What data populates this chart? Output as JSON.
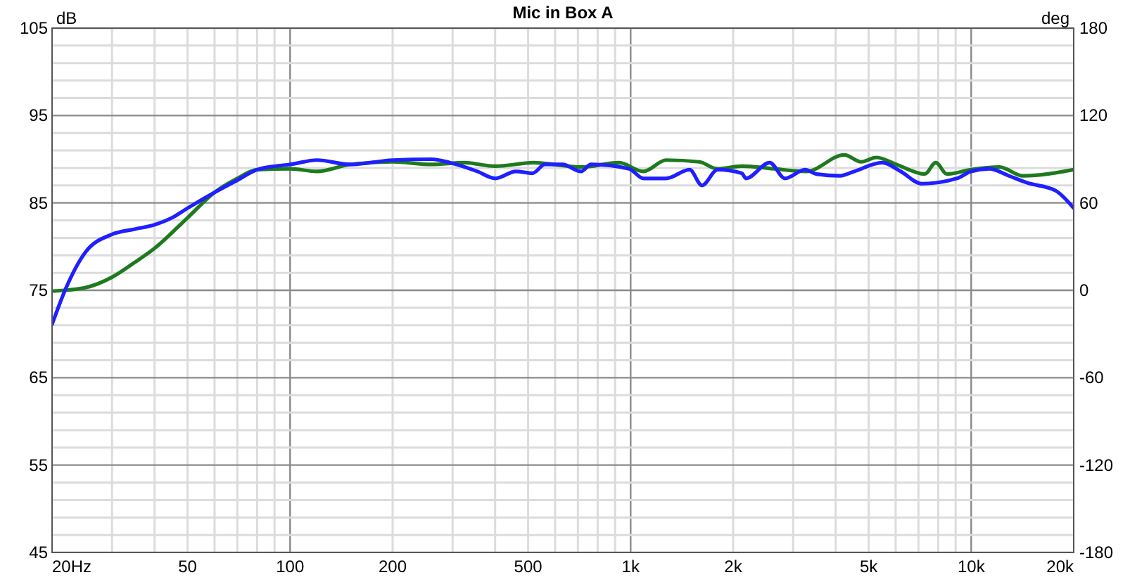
{
  "chart_data": {
    "type": "line",
    "title": "Mic in Box A",
    "ylabel": "dB",
    "y2label": "deg",
    "log": "x",
    "grid": true,
    "xlim": [
      20,
      20000
    ],
    "xticks": [
      {
        "value": 20,
        "label": "20Hz"
      },
      50,
      100,
      200,
      500,
      {
        "value": 1000,
        "label": "1k"
      },
      {
        "value": 2000,
        "label": "2k"
      },
      {
        "value": 5000,
        "label": "5k"
      },
      {
        "value": 10000,
        "label": "10k"
      },
      {
        "value": 20000,
        "label": "20k"
      }
    ],
    "ylim": [
      45,
      105
    ],
    "yticks": [
      45,
      55,
      65,
      75,
      85,
      95,
      105
    ],
    "y2lim": [
      -180,
      180
    ],
    "y2ticks": [
      -180,
      -120,
      -60,
      0,
      60,
      120,
      180
    ],
    "series": [
      {
        "color": "#1e7a1e",
        "x": [
          20,
          25,
          30,
          35,
          40,
          50,
          60,
          70,
          80,
          100,
          120,
          150,
          200,
          260,
          325,
          400,
          520,
          715,
          925,
          1090,
          1270,
          1590,
          1800,
          2120,
          2350,
          2640,
          3280,
          4240,
          4750,
          5270,
          6030,
          7300,
          7870,
          8490,
          9980,
          12100,
          14200,
          20000
        ],
        "values": [
          74.9,
          75.3,
          76.5,
          78.2,
          79.8,
          83.3,
          86.2,
          87.8,
          88.8,
          88.9,
          88.6,
          89.4,
          89.7,
          89.4,
          89.6,
          89.2,
          89.6,
          89.1,
          89.6,
          88.6,
          89.9,
          89.7,
          88.9,
          89.2,
          89.1,
          88.9,
          88.6,
          90.5,
          89.7,
          90.2,
          89.4,
          88.3,
          89.6,
          88.3,
          88.8,
          89.1,
          88.1,
          88.8
        ]
      },
      {
        "color": "#1f1fff",
        "x": [
          20,
          22,
          25,
          30,
          35,
          40,
          45,
          50,
          60,
          70,
          80,
          90,
          100,
          120,
          150,
          200,
          260,
          295,
          355,
          400,
          460,
          515,
          560,
          630,
          715,
          765,
          990,
          1090,
          1270,
          1490,
          1620,
          1800,
          2120,
          2180,
          2560,
          2840,
          3250,
          3510,
          4120,
          4530,
          5480,
          6210,
          7160,
          9080,
          9980,
          11300,
          12900,
          14600,
          17700,
          20000
        ],
        "values": [
          71.1,
          75.3,
          79.3,
          81.4,
          82,
          82.5,
          83.3,
          84.4,
          86.2,
          87.6,
          88.8,
          89.2,
          89.4,
          89.9,
          89.4,
          89.9,
          90,
          89.6,
          88.6,
          87.8,
          88.6,
          88.4,
          89.4,
          89.4,
          88.6,
          89.4,
          88.9,
          87.8,
          87.8,
          88.8,
          87,
          88.8,
          88.4,
          87.8,
          89.6,
          87.8,
          88.8,
          88.3,
          88.1,
          88.6,
          89.6,
          88.6,
          87.2,
          87.8,
          88.6,
          88.9,
          88.1,
          87.3,
          86.4,
          84.4
        ]
      }
    ]
  }
}
